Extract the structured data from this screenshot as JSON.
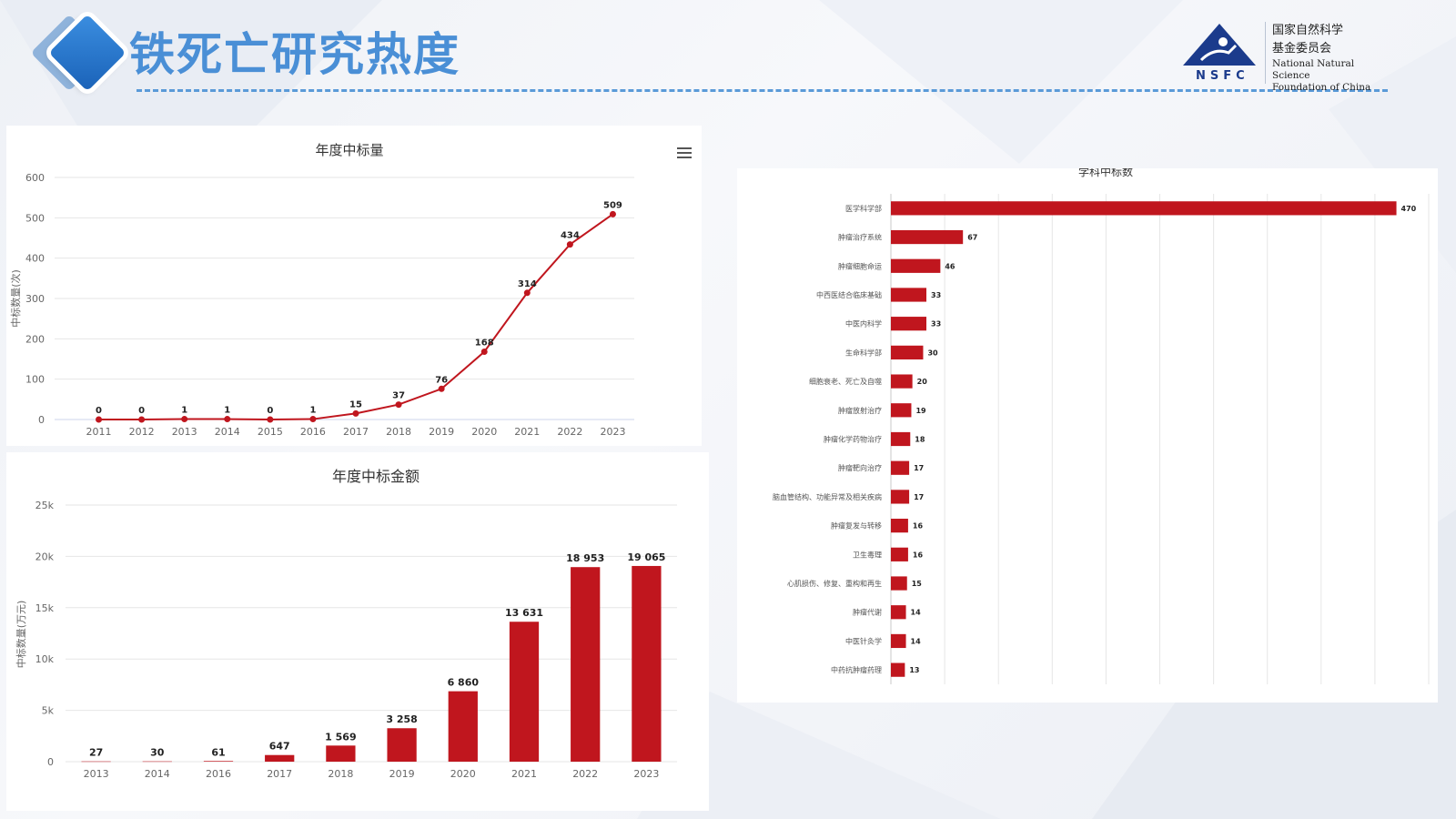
{
  "header": {
    "title": "铁死亡研究热度",
    "logo": {
      "abbr": "NSFC",
      "cn_lines": [
        "国家自然科学",
        "基金委员会"
      ],
      "en_lines": [
        "National Natural Science",
        "Foundation of China"
      ]
    }
  },
  "colors": {
    "accent": "#c0161e",
    "title_blue": "#4a8fd6",
    "grid": "#e6e6e6"
  },
  "chart_data": [
    {
      "id": "annual_awards",
      "type": "line",
      "title": "年度中标量",
      "xlabel": "",
      "ylabel": "中标数量(次)",
      "x": [
        "2011",
        "2012",
        "2013",
        "2014",
        "2015",
        "2016",
        "2017",
        "2018",
        "2019",
        "2020",
        "2021",
        "2022",
        "2023"
      ],
      "values": [
        0,
        0,
        1,
        1,
        0,
        1,
        15,
        37,
        76,
        168,
        314,
        434,
        509
      ],
      "ylim": [
        0,
        600
      ],
      "yticks": [
        0,
        100,
        200,
        300,
        400,
        500,
        600
      ],
      "grid": true,
      "color": "#c0161e"
    },
    {
      "id": "annual_amount",
      "type": "bar",
      "title": "年度中标金额",
      "xlabel": "",
      "ylabel": "中标数量(万元)",
      "categories": [
        "2013",
        "2014",
        "2016",
        "2017",
        "2018",
        "2019",
        "2020",
        "2021",
        "2022",
        "2023"
      ],
      "values": [
        27,
        30,
        61,
        647,
        1569,
        3258,
        6860,
        13631,
        18953,
        19065
      ],
      "value_labels": [
        "27",
        "30",
        "61",
        "647",
        "1 569",
        "3 258",
        "6 860",
        "13 631",
        "18 953",
        "19 065"
      ],
      "ylim": [
        0,
        25000
      ],
      "ytick_labels": [
        "0",
        "5k",
        "10k",
        "15k",
        "20k",
        "25k"
      ],
      "ytick_values": [
        0,
        5000,
        10000,
        15000,
        20000,
        25000
      ],
      "grid": true,
      "color": "#c0161e"
    },
    {
      "id": "discipline_awards",
      "type": "bar",
      "orientation": "horizontal",
      "title": "学科中标数",
      "categories": [
        "医学科学部",
        "肿瘤治疗系统",
        "肿瘤细胞命运",
        "中西医结合临床基础",
        "中医内科学",
        "生命科学部",
        "细胞衰老、死亡及自噬",
        "肿瘤放射治疗",
        "肿瘤化学药物治疗",
        "肿瘤靶向治疗",
        "脑血管结构、功能异常及相关疾病",
        "肿瘤复发与转移",
        "卫生毒理",
        "心肌损伤、修复、重构和再生",
        "肿瘤代谢",
        "中医针灸学",
        "中药抗肿瘤药理"
      ],
      "values": [
        470,
        67,
        46,
        33,
        33,
        30,
        20,
        19,
        18,
        17,
        17,
        16,
        16,
        15,
        14,
        14,
        13
      ],
      "xlim": [
        0,
        500
      ],
      "grid": true,
      "color": "#c0161e"
    }
  ]
}
